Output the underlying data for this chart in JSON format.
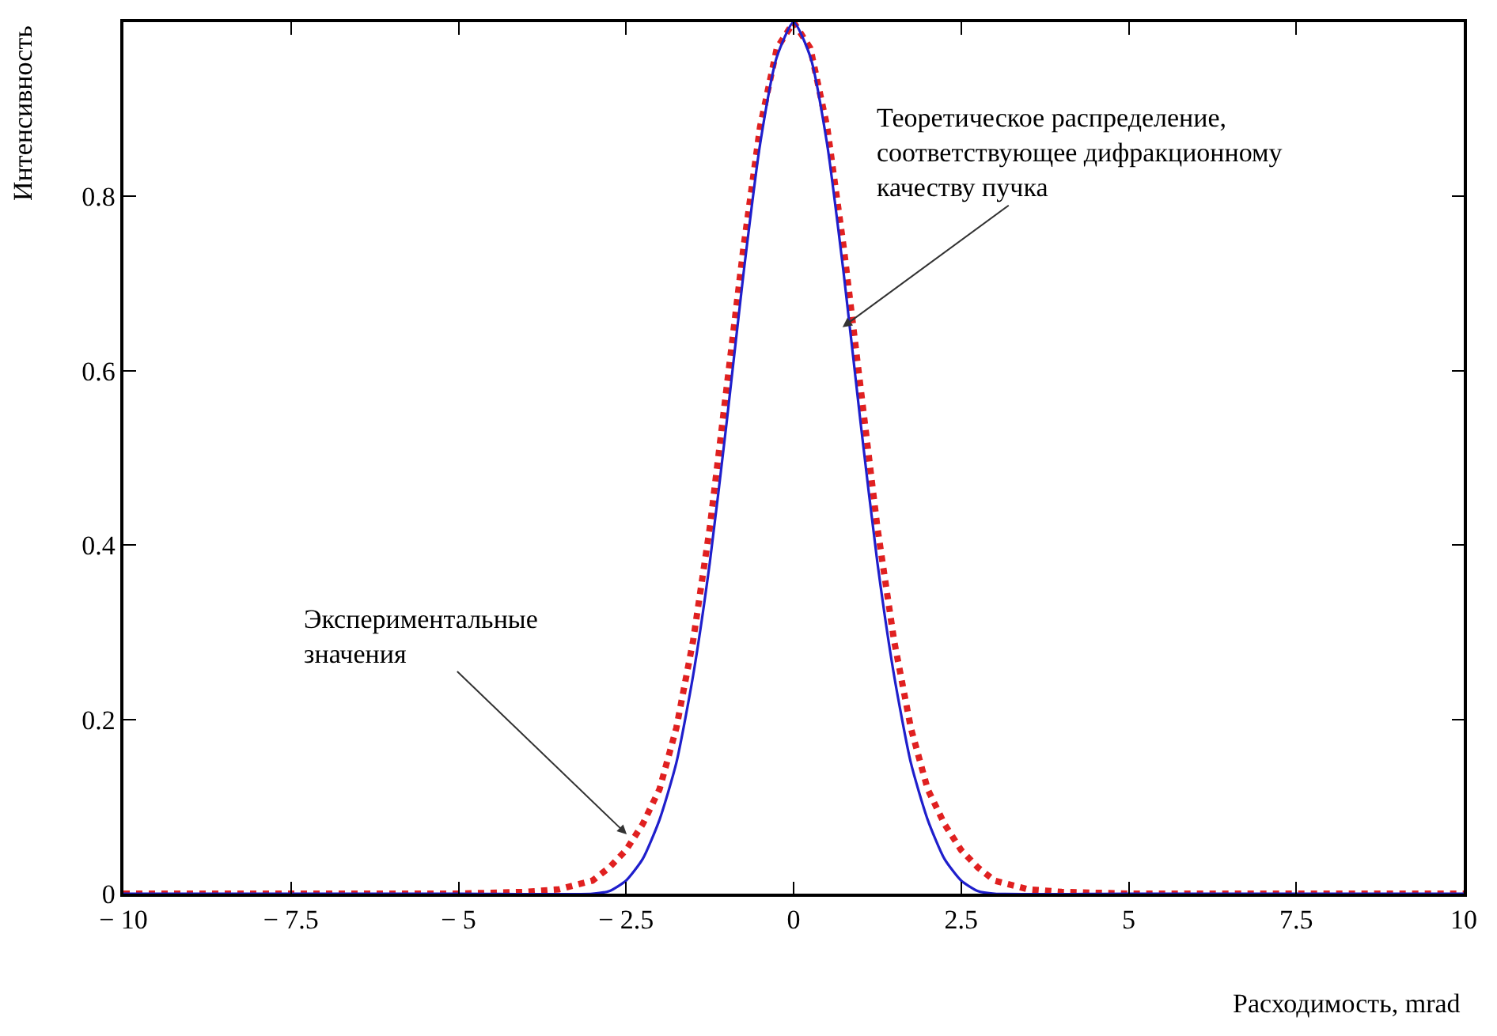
{
  "chart_data": {
    "type": "line",
    "xlabel": "Расходимость, mrad",
    "ylabel": "Интенсивность",
    "xlim": [
      -10,
      10
    ],
    "ylim": [
      0,
      1
    ],
    "xticks": [
      {
        "value": -10,
        "label": "− 10"
      },
      {
        "value": -7.5,
        "label": "− 7.5"
      },
      {
        "value": -5,
        "label": "− 5"
      },
      {
        "value": -2.5,
        "label": "− 2.5"
      },
      0,
      2.5,
      5,
      7.5,
      10
    ],
    "yticks": [
      0,
      0.2,
      0.4,
      0.6,
      0.8
    ],
    "series": [
      {
        "color": "#e02020",
        "line_style": "dotted",
        "x": [
          -10,
          -8,
          -6,
          -5,
          -4,
          -3.5,
          -3,
          -2.75,
          -2.5,
          -2.25,
          -2,
          -1.75,
          -1.5,
          -1.25,
          -1,
          -0.75,
          -0.5,
          -0.25,
          0,
          0.25,
          0.5,
          0.75,
          1,
          1.25,
          1.5,
          1.75,
          2,
          2.25,
          2.5,
          2.75,
          3,
          3.5,
          4,
          5,
          6,
          8,
          10
        ],
        "values": [
          0,
          0,
          0,
          0,
          0.002,
          0.005,
          0.015,
          0.03,
          0.05,
          0.08,
          0.12,
          0.19,
          0.29,
          0.42,
          0.58,
          0.74,
          0.88,
          0.97,
          1.0,
          0.97,
          0.88,
          0.74,
          0.58,
          0.42,
          0.29,
          0.19,
          0.12,
          0.08,
          0.05,
          0.03,
          0.015,
          0.005,
          0.002,
          0,
          0,
          0,
          0
        ]
      },
      {
        "color": "#1f1fcc",
        "line_style": "solid",
        "x": [
          -10,
          -5,
          -3,
          -2.75,
          -2.5,
          -2.25,
          -2,
          -1.75,
          -1.5,
          -1.25,
          -1,
          -0.75,
          -0.5,
          -0.25,
          0,
          0.25,
          0.5,
          0.75,
          1,
          1.25,
          1.5,
          1.75,
          2,
          2.25,
          2.5,
          2.75,
          3,
          5,
          10
        ],
        "values": [
          0,
          0,
          0,
          0.003,
          0.015,
          0.04,
          0.085,
          0.15,
          0.25,
          0.38,
          0.54,
          0.71,
          0.86,
          0.96,
          1.0,
          0.96,
          0.86,
          0.71,
          0.54,
          0.38,
          0.25,
          0.15,
          0.085,
          0.04,
          0.015,
          0.003,
          0,
          0,
          0
        ]
      }
    ],
    "annotations": [
      {
        "text": "Теоретическое распределение,\nсоответствующее дифракционному\nкачеству пучка",
        "x": 0.73,
        "y": 0.65
      },
      {
        "text": "Экспериментальные\nзначения",
        "x": -2.49,
        "y": 0.068
      }
    ]
  }
}
